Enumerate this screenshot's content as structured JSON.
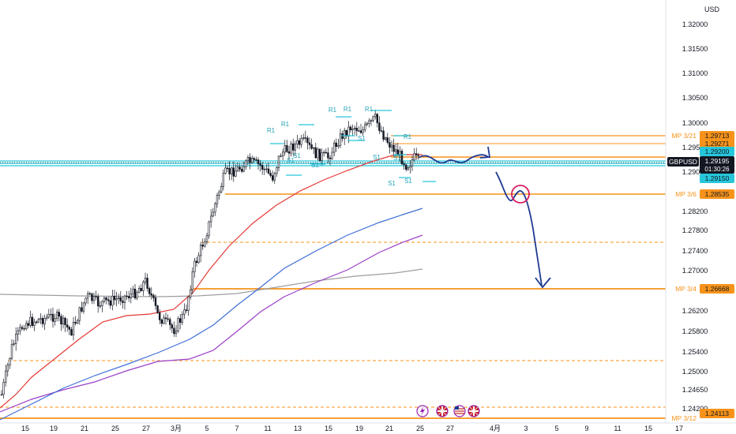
{
  "chart_data": {
    "type": "candlestick",
    "symbol": "GBPUSD",
    "currency": "USD",
    "ylim": [
      1.2385,
      1.3255
    ],
    "y_ticks": [
      "1.32000",
      "1.31500",
      "1.31000",
      "1.30500",
      "1.30000",
      "1.29500",
      "1.29000",
      "1.28200",
      "1.27800",
      "1.27400",
      "1.27000",
      "1.26200",
      "1.25800",
      "1.25400",
      "1.25000",
      "1.24650",
      "1.24200"
    ],
    "x_ticks": [
      "15",
      "19",
      "21",
      "25",
      "27",
      "3月",
      "5",
      "7",
      "11",
      "13",
      "15",
      "19",
      "21",
      "25",
      "27",
      "4月",
      "3",
      "5",
      "9",
      "11",
      "15",
      "17"
    ],
    "last_price": "1.29195",
    "countdown": "01:30:26",
    "price_badges": [
      {
        "label": "1.29713",
        "price": 1.29713,
        "color": "#f7931a"
      },
      {
        "label": "1.29271",
        "price": 1.29271,
        "color": "#f7931a"
      },
      {
        "label": "1.29200",
        "price": 1.292,
        "color": "#26c6da"
      },
      {
        "label": "1.29150",
        "price": 1.2915,
        "color": "#26c6da"
      },
      {
        "label": "1.28535",
        "price": 1.28535,
        "color": "#f7931a"
      },
      {
        "label": "1.26668",
        "price": 1.26668,
        "color": "#f7931a"
      },
      {
        "label": "1.24113",
        "price": 1.24113,
        "color": "#f7931a"
      }
    ],
    "level_labels": [
      {
        "text": "MP 3/21",
        "price": 1.29713
      },
      {
        "text": "MP 3/6",
        "price": 1.28535
      },
      {
        "text": "MP 3/4",
        "price": 1.26668
      },
      {
        "text": "MP 3/12",
        "price": 1.24113
      }
    ],
    "pivot_labels": [
      "R1",
      "R1",
      "R1",
      "R1",
      "R1",
      "R1",
      "S1",
      "S1",
      "S1",
      "S1",
      "S1",
      "S1",
      "S1",
      "S1"
    ],
    "series": [
      {
        "name": "",
        "kind": "ema",
        "color": "#e53935"
      },
      {
        "name": "",
        "kind": "ema",
        "color": "#3f6fd8"
      },
      {
        "name": "",
        "kind": "ema",
        "color": "#9c3fc9"
      },
      {
        "name": "",
        "kind": "sma",
        "color": "#9e9e9e"
      }
    ],
    "grid": false
  },
  "events": [
    "lightning-icon",
    "uk-flag-icon",
    "us-flag-icon",
    "uk-flag-icon"
  ],
  "colors": {
    "orange": "#f7931a",
    "teal": "#26c6da",
    "projection": "#1f3a93",
    "circle": "#d81b60"
  }
}
